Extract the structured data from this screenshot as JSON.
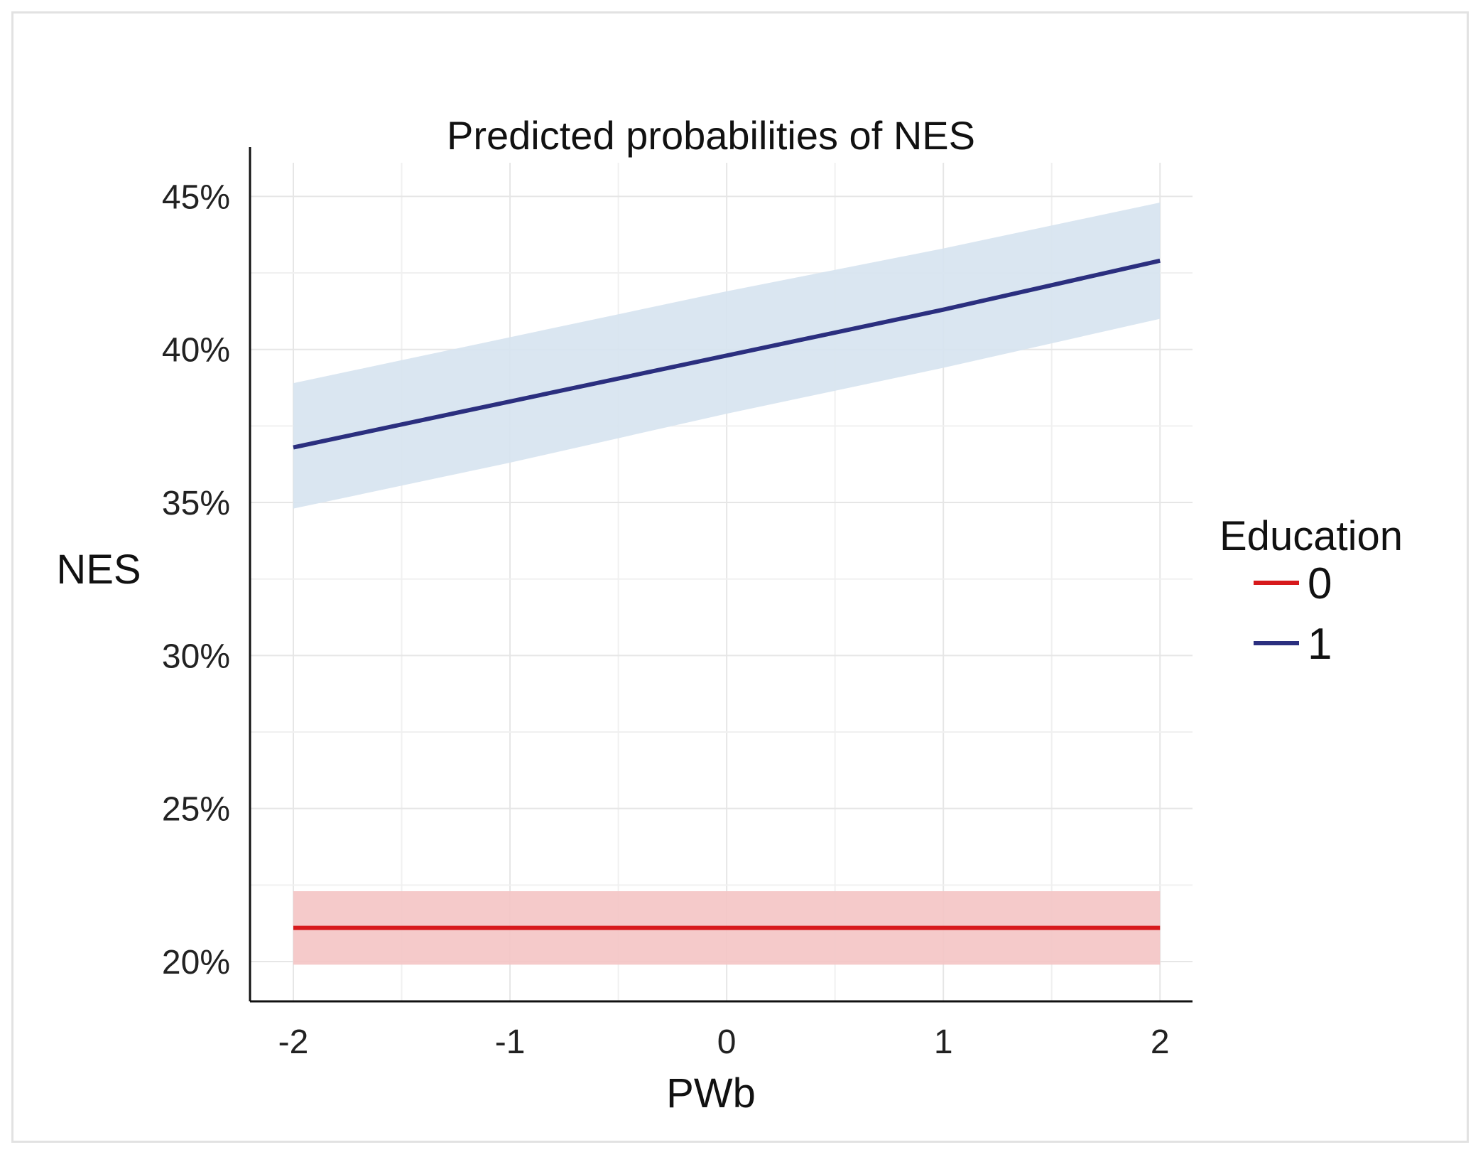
{
  "chart_data": {
    "type": "line",
    "title": "Predicted probabilities of NES",
    "xlabel": "PWb",
    "ylabel": "NES",
    "x": [
      -2,
      -1,
      0,
      1,
      2
    ],
    "xticks": [
      -2,
      -1,
      0,
      1,
      2
    ],
    "xtick_labels": [
      "-2",
      "-1",
      "0",
      "1",
      "2"
    ],
    "xlim": [
      -2.2,
      2.15
    ],
    "ylim": [
      18.7,
      46.1
    ],
    "yticks": [
      20,
      25,
      30,
      35,
      40,
      45
    ],
    "ytick_labels": [
      "20%",
      "25%",
      "30%",
      "35%",
      "40%",
      "45%"
    ],
    "grid": true,
    "legend": {
      "title": "Education",
      "position": "right"
    },
    "series": [
      {
        "name": "0",
        "color": "#d7191c",
        "band_color": "#f4c4c4",
        "values": [
          21.1,
          21.1,
          21.1,
          21.1,
          21.1
        ],
        "lower": [
          19.9,
          19.9,
          19.9,
          19.9,
          19.9
        ],
        "upper": [
          22.3,
          22.3,
          22.3,
          22.3,
          22.3
        ]
      },
      {
        "name": "1",
        "color": "#2b2f7f",
        "band_color": "#d6e3f0",
        "values": [
          36.8,
          38.3,
          39.8,
          41.3,
          42.9
        ],
        "lower": [
          34.8,
          36.3,
          37.9,
          39.4,
          41.0
        ],
        "upper": [
          38.9,
          40.4,
          41.9,
          43.3,
          44.8
        ]
      }
    ]
  }
}
